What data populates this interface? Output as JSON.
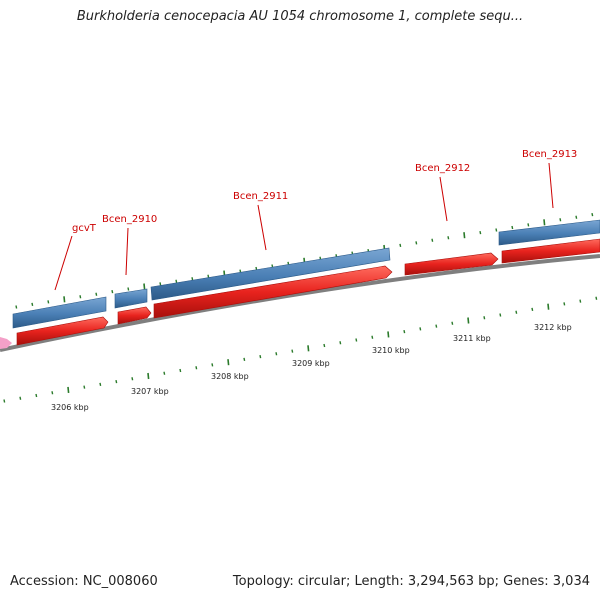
{
  "title": "Burkholderia cenocepacia AU 1054 chromosome 1, complete sequ...",
  "footer": {
    "accession": "Accession: NC_008060",
    "info": "Topology: circular; Length: 3,294,563 bp; Genes: 3,034"
  },
  "colors": {
    "forward_gene": "#4a7fb5",
    "reverse_gene": "#e8231e",
    "backbone": "#8a8a8a",
    "tick": "#2a7a2a",
    "label": "#cc0000",
    "marker": "#f4a0c8"
  },
  "gene_labels": [
    "gcvT",
    "Bcen_2910",
    "Bcen_2911",
    "Bcen_2912",
    "Bcen_2913"
  ],
  "kbp_ticks": [
    "3206 kbp",
    "3207 kbp",
    "3208 kbp",
    "3209 kbp",
    "3210 kbp",
    "3211 kbp",
    "3212 kbp"
  ]
}
